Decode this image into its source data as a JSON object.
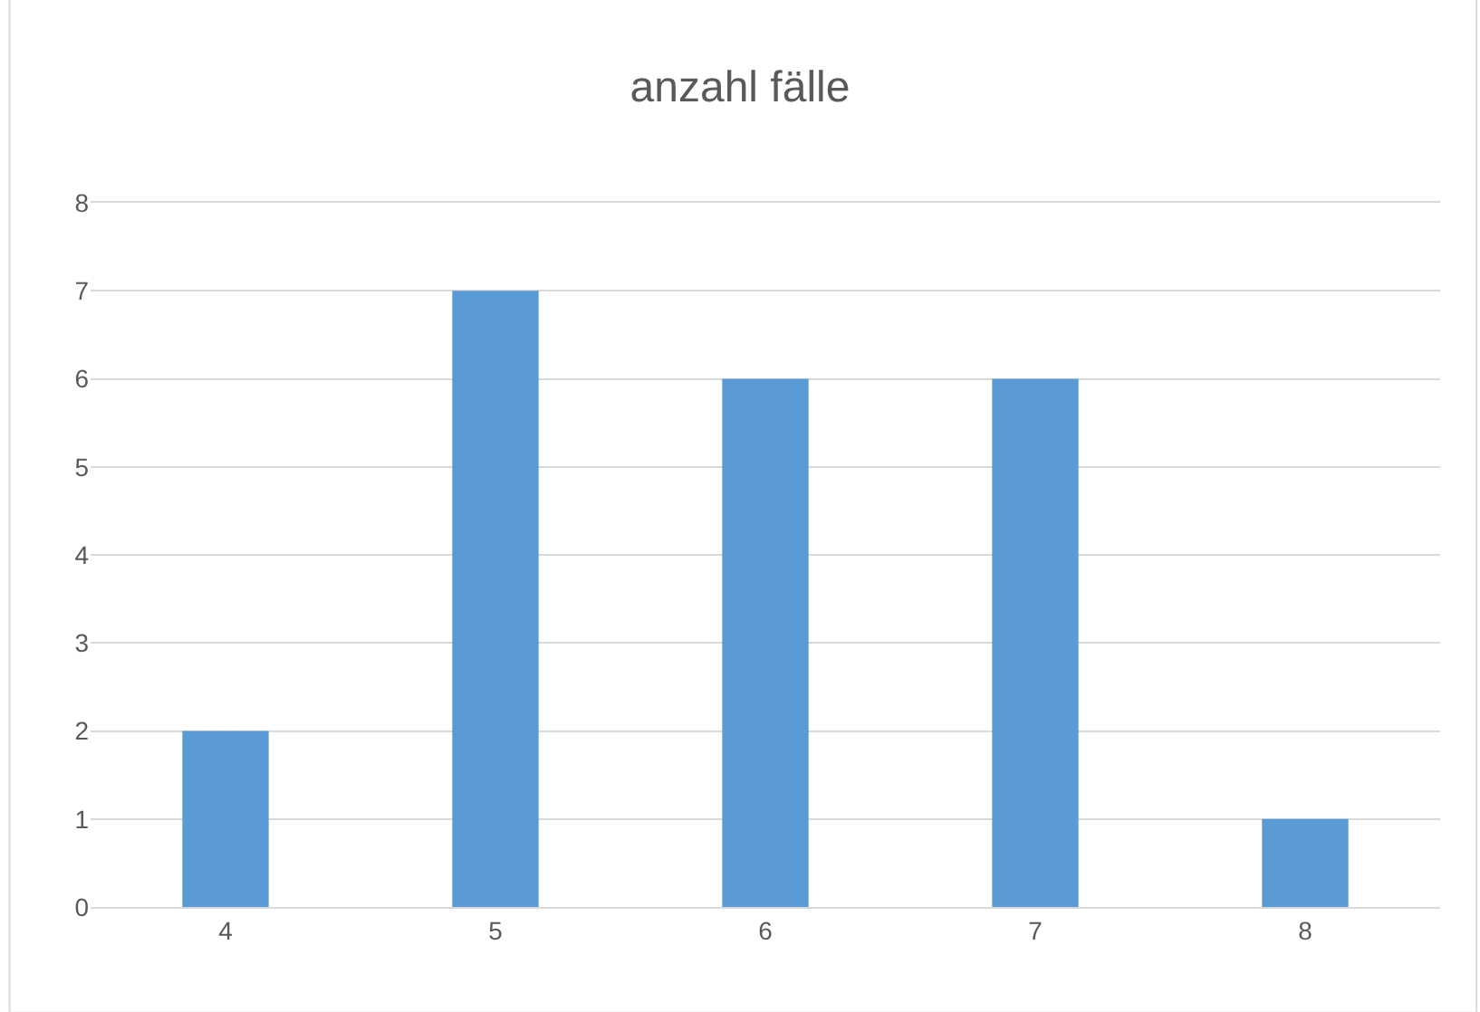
{
  "chart_data": {
    "type": "bar",
    "title": "anzahl fälle",
    "categories": [
      "4",
      "5",
      "6",
      "7",
      "8"
    ],
    "values": [
      2,
      7,
      6,
      6,
      1
    ],
    "color": "#5b9bd5",
    "ylim": [
      0,
      8
    ],
    "yticks": [
      0,
      1,
      2,
      3,
      4,
      5,
      6,
      7,
      8
    ],
    "grid": "y"
  }
}
